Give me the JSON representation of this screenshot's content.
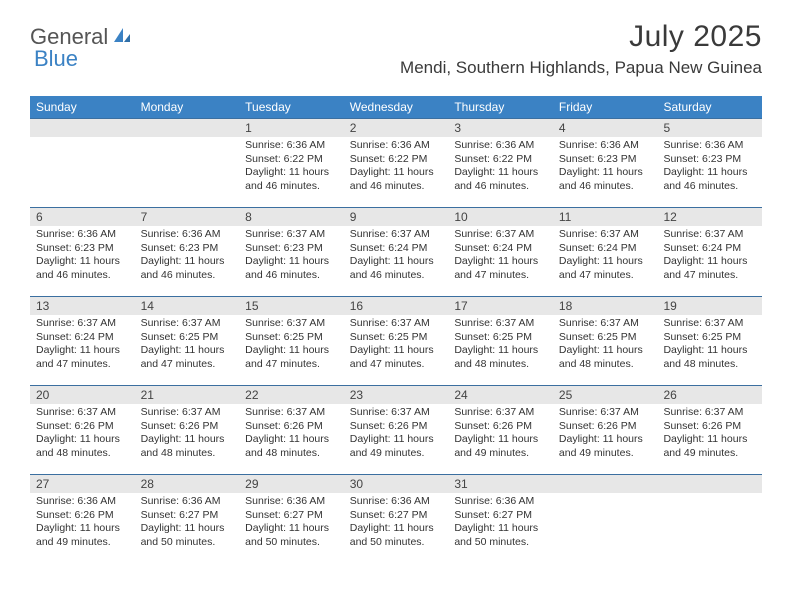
{
  "colors": {
    "header_bg": "#3b82c4",
    "header_text": "#ffffff",
    "daynum_bg": "#e7e7e7",
    "row_border": "#3b6fa0",
    "logo_gray": "#555555",
    "logo_blue": "#3b82c4",
    "body_bg": "#ffffff",
    "text": "#333333"
  },
  "logo": {
    "part1": "General",
    "part2": "Blue"
  },
  "title": "July 2025",
  "location": "Mendi, Southern Highlands, Papua New Guinea",
  "weekdays": [
    "Sunday",
    "Monday",
    "Tuesday",
    "Wednesday",
    "Thursday",
    "Friday",
    "Saturday"
  ],
  "layout": {
    "columns": 7,
    "day_fontsize_pt": 10.5,
    "weekday_fontsize_pt": 12,
    "title_fontsize_pt": 30,
    "location_fontsize_pt": 17
  },
  "weeks": [
    [
      {
        "day": "",
        "sunrise": "",
        "sunset": "",
        "daylight1": "",
        "daylight2": ""
      },
      {
        "day": "",
        "sunrise": "",
        "sunset": "",
        "daylight1": "",
        "daylight2": ""
      },
      {
        "day": "1",
        "sunrise": "Sunrise: 6:36 AM",
        "sunset": "Sunset: 6:22 PM",
        "daylight1": "Daylight: 11 hours",
        "daylight2": "and 46 minutes."
      },
      {
        "day": "2",
        "sunrise": "Sunrise: 6:36 AM",
        "sunset": "Sunset: 6:22 PM",
        "daylight1": "Daylight: 11 hours",
        "daylight2": "and 46 minutes."
      },
      {
        "day": "3",
        "sunrise": "Sunrise: 6:36 AM",
        "sunset": "Sunset: 6:22 PM",
        "daylight1": "Daylight: 11 hours",
        "daylight2": "and 46 minutes."
      },
      {
        "day": "4",
        "sunrise": "Sunrise: 6:36 AM",
        "sunset": "Sunset: 6:23 PM",
        "daylight1": "Daylight: 11 hours",
        "daylight2": "and 46 minutes."
      },
      {
        "day": "5",
        "sunrise": "Sunrise: 6:36 AM",
        "sunset": "Sunset: 6:23 PM",
        "daylight1": "Daylight: 11 hours",
        "daylight2": "and 46 minutes."
      }
    ],
    [
      {
        "day": "6",
        "sunrise": "Sunrise: 6:36 AM",
        "sunset": "Sunset: 6:23 PM",
        "daylight1": "Daylight: 11 hours",
        "daylight2": "and 46 minutes."
      },
      {
        "day": "7",
        "sunrise": "Sunrise: 6:36 AM",
        "sunset": "Sunset: 6:23 PM",
        "daylight1": "Daylight: 11 hours",
        "daylight2": "and 46 minutes."
      },
      {
        "day": "8",
        "sunrise": "Sunrise: 6:37 AM",
        "sunset": "Sunset: 6:23 PM",
        "daylight1": "Daylight: 11 hours",
        "daylight2": "and 46 minutes."
      },
      {
        "day": "9",
        "sunrise": "Sunrise: 6:37 AM",
        "sunset": "Sunset: 6:24 PM",
        "daylight1": "Daylight: 11 hours",
        "daylight2": "and 46 minutes."
      },
      {
        "day": "10",
        "sunrise": "Sunrise: 6:37 AM",
        "sunset": "Sunset: 6:24 PM",
        "daylight1": "Daylight: 11 hours",
        "daylight2": "and 47 minutes."
      },
      {
        "day": "11",
        "sunrise": "Sunrise: 6:37 AM",
        "sunset": "Sunset: 6:24 PM",
        "daylight1": "Daylight: 11 hours",
        "daylight2": "and 47 minutes."
      },
      {
        "day": "12",
        "sunrise": "Sunrise: 6:37 AM",
        "sunset": "Sunset: 6:24 PM",
        "daylight1": "Daylight: 11 hours",
        "daylight2": "and 47 minutes."
      }
    ],
    [
      {
        "day": "13",
        "sunrise": "Sunrise: 6:37 AM",
        "sunset": "Sunset: 6:24 PM",
        "daylight1": "Daylight: 11 hours",
        "daylight2": "and 47 minutes."
      },
      {
        "day": "14",
        "sunrise": "Sunrise: 6:37 AM",
        "sunset": "Sunset: 6:25 PM",
        "daylight1": "Daylight: 11 hours",
        "daylight2": "and 47 minutes."
      },
      {
        "day": "15",
        "sunrise": "Sunrise: 6:37 AM",
        "sunset": "Sunset: 6:25 PM",
        "daylight1": "Daylight: 11 hours",
        "daylight2": "and 47 minutes."
      },
      {
        "day": "16",
        "sunrise": "Sunrise: 6:37 AM",
        "sunset": "Sunset: 6:25 PM",
        "daylight1": "Daylight: 11 hours",
        "daylight2": "and 47 minutes."
      },
      {
        "day": "17",
        "sunrise": "Sunrise: 6:37 AM",
        "sunset": "Sunset: 6:25 PM",
        "daylight1": "Daylight: 11 hours",
        "daylight2": "and 48 minutes."
      },
      {
        "day": "18",
        "sunrise": "Sunrise: 6:37 AM",
        "sunset": "Sunset: 6:25 PM",
        "daylight1": "Daylight: 11 hours",
        "daylight2": "and 48 minutes."
      },
      {
        "day": "19",
        "sunrise": "Sunrise: 6:37 AM",
        "sunset": "Sunset: 6:25 PM",
        "daylight1": "Daylight: 11 hours",
        "daylight2": "and 48 minutes."
      }
    ],
    [
      {
        "day": "20",
        "sunrise": "Sunrise: 6:37 AM",
        "sunset": "Sunset: 6:26 PM",
        "daylight1": "Daylight: 11 hours",
        "daylight2": "and 48 minutes."
      },
      {
        "day": "21",
        "sunrise": "Sunrise: 6:37 AM",
        "sunset": "Sunset: 6:26 PM",
        "daylight1": "Daylight: 11 hours",
        "daylight2": "and 48 minutes."
      },
      {
        "day": "22",
        "sunrise": "Sunrise: 6:37 AM",
        "sunset": "Sunset: 6:26 PM",
        "daylight1": "Daylight: 11 hours",
        "daylight2": "and 48 minutes."
      },
      {
        "day": "23",
        "sunrise": "Sunrise: 6:37 AM",
        "sunset": "Sunset: 6:26 PM",
        "daylight1": "Daylight: 11 hours",
        "daylight2": "and 49 minutes."
      },
      {
        "day": "24",
        "sunrise": "Sunrise: 6:37 AM",
        "sunset": "Sunset: 6:26 PM",
        "daylight1": "Daylight: 11 hours",
        "daylight2": "and 49 minutes."
      },
      {
        "day": "25",
        "sunrise": "Sunrise: 6:37 AM",
        "sunset": "Sunset: 6:26 PM",
        "daylight1": "Daylight: 11 hours",
        "daylight2": "and 49 minutes."
      },
      {
        "day": "26",
        "sunrise": "Sunrise: 6:37 AM",
        "sunset": "Sunset: 6:26 PM",
        "daylight1": "Daylight: 11 hours",
        "daylight2": "and 49 minutes."
      }
    ],
    [
      {
        "day": "27",
        "sunrise": "Sunrise: 6:36 AM",
        "sunset": "Sunset: 6:26 PM",
        "daylight1": "Daylight: 11 hours",
        "daylight2": "and 49 minutes."
      },
      {
        "day": "28",
        "sunrise": "Sunrise: 6:36 AM",
        "sunset": "Sunset: 6:27 PM",
        "daylight1": "Daylight: 11 hours",
        "daylight2": "and 50 minutes."
      },
      {
        "day": "29",
        "sunrise": "Sunrise: 6:36 AM",
        "sunset": "Sunset: 6:27 PM",
        "daylight1": "Daylight: 11 hours",
        "daylight2": "and 50 minutes."
      },
      {
        "day": "30",
        "sunrise": "Sunrise: 6:36 AM",
        "sunset": "Sunset: 6:27 PM",
        "daylight1": "Daylight: 11 hours",
        "daylight2": "and 50 minutes."
      },
      {
        "day": "31",
        "sunrise": "Sunrise: 6:36 AM",
        "sunset": "Sunset: 6:27 PM",
        "daylight1": "Daylight: 11 hours",
        "daylight2": "and 50 minutes."
      },
      {
        "day": "",
        "sunrise": "",
        "sunset": "",
        "daylight1": "",
        "daylight2": ""
      },
      {
        "day": "",
        "sunrise": "",
        "sunset": "",
        "daylight1": "",
        "daylight2": ""
      }
    ]
  ]
}
